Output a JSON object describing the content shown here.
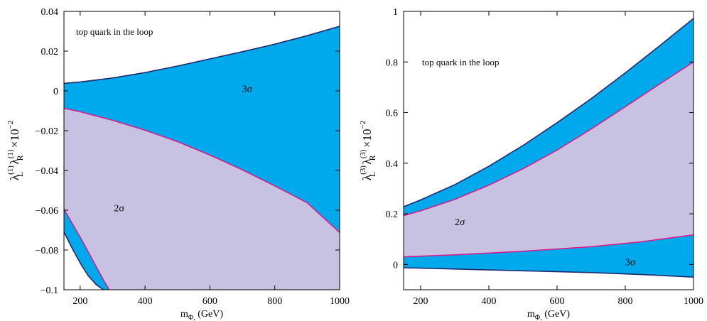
{
  "chart_data": [
    {
      "type": "area",
      "title": "",
      "annotation": "top quark in the loop",
      "xlabel": {
        "main": "m",
        "sub": "Φ,",
        "tail": " (GeV)"
      },
      "ylabel": {
        "l": "λ",
        "lsup": "(1)",
        "lsub": "L",
        "r": "λ",
        "rsup": "(1)",
        "rsub": "R",
        "tail": " ×10",
        "exp": "−2"
      },
      "xlim": [
        150,
        1000
      ],
      "ylim": [
        -0.1,
        0.04
      ],
      "xticks": [
        200,
        400,
        600,
        800,
        1000
      ],
      "yticks": [
        -0.1,
        -0.08,
        -0.06,
        -0.04,
        -0.02,
        0,
        0.02,
        0.04
      ],
      "ytick_labels": [
        "−0.1",
        "−0.08",
        "−0.06",
        "−0.04",
        "−0.02",
        "0",
        "0.02",
        "0.04"
      ],
      "series": [
        {
          "name": "3σ",
          "curves": {
            "upper": {
              "x": [
                150,
                200,
                300,
                400,
                500,
                600,
                700,
                800,
                900,
                1000
              ],
              "y": [
                0.0038,
                0.0045,
                0.0065,
                0.0092,
                0.0125,
                0.0161,
                0.0197,
                0.0235,
                0.0278,
                0.0325
              ]
            },
            "lower_band": {
              "x": [
                150,
                175,
                200,
                225,
                250,
                272
              ],
              "y": [
                -0.071,
                -0.079,
                -0.0865,
                -0.093,
                -0.0975,
                -0.1
              ]
            }
          }
        },
        {
          "name": "2σ",
          "curves": {
            "upper": {
              "x": [
                150,
                200,
                300,
                400,
                500,
                600,
                700,
                800,
                900,
                1000
              ],
              "y": [
                -0.0087,
                -0.0105,
                -0.0148,
                -0.0198,
                -0.0255,
                -0.0323,
                -0.0397,
                -0.0478,
                -0.0563,
                -0.0712
              ]
            },
            "lower": {
              "x": [
                150,
                175,
                200,
                225,
                250,
                275,
                290
              ],
              "y": [
                -0.0595,
                -0.0665,
                -0.0735,
                -0.081,
                -0.0885,
                -0.096,
                -0.1
              ]
            }
          }
        }
      ],
      "labels": [
        {
          "text": "3σ",
          "x": 715,
          "y": -0.0005
        },
        {
          "text": "2σ",
          "x": 320,
          "y": -0.0605
        }
      ],
      "colors": {
        "band3": "#00a8ec",
        "band2": "#c8c2e2",
        "edge3": "#1f2a6e",
        "edge2": "#d51e8c"
      }
    },
    {
      "type": "area",
      "title": "",
      "annotation": "top quark in the loop",
      "xlabel": {
        "main": "m",
        "sub": "Φ,",
        "tail": " (GeV)"
      },
      "ylabel": {
        "l": "λ",
        "lsup": "(3)",
        "lsub": "L",
        "r": "λ",
        "rsup": "(3)",
        "rsub": "R",
        "tail": " ×10",
        "exp": "−2"
      },
      "xlim": [
        150,
        1000
      ],
      "ylim": [
        -0.1,
        1.0
      ],
      "xticks": [
        200,
        400,
        600,
        800,
        1000
      ],
      "yticks": [
        0,
        0.2,
        0.4,
        0.6,
        0.8,
        1
      ],
      "ytick_labels": [
        "0",
        "0.2",
        "0.4",
        "0.6",
        "0.8",
        "1"
      ],
      "series": [
        {
          "name": "3σ",
          "curves": {
            "upper": {
              "x": [
                150,
                200,
                300,
                400,
                500,
                600,
                700,
                800,
                900,
                1000
              ],
              "y": [
                0.228,
                0.255,
                0.315,
                0.388,
                0.47,
                0.56,
                0.655,
                0.757,
                0.863,
                0.972
              ]
            },
            "lower": {
              "x": [
                150,
                300,
                500,
                700,
                850,
                1000
              ],
              "y": [
                -0.013,
                -0.018,
                -0.025,
                -0.032,
                -0.04,
                -0.05
              ]
            }
          }
        },
        {
          "name": "2σ",
          "curves": {
            "upper": {
              "x": [
                150,
                200,
                300,
                400,
                500,
                600,
                700,
                800,
                900,
                1000
              ],
              "y": [
                0.193,
                0.212,
                0.257,
                0.313,
                0.378,
                0.452,
                0.535,
                0.623,
                0.712,
                0.8
              ]
            },
            "lower": {
              "x": [
                150,
                300,
                500,
                700,
                850,
                1000
              ],
              "y": [
                0.03,
                0.038,
                0.052,
                0.07,
                0.09,
                0.117
              ]
            }
          }
        }
      ],
      "labels": [
        {
          "text": "2σ",
          "x": 315,
          "y": 0.155
        },
        {
          "text": "3σ",
          "x": 815,
          "y": -0.003
        }
      ],
      "colors": {
        "band3": "#00a8ec",
        "band2": "#c8c2e2",
        "edge3": "#1f2a6e",
        "edge2": "#d51e8c"
      }
    }
  ]
}
